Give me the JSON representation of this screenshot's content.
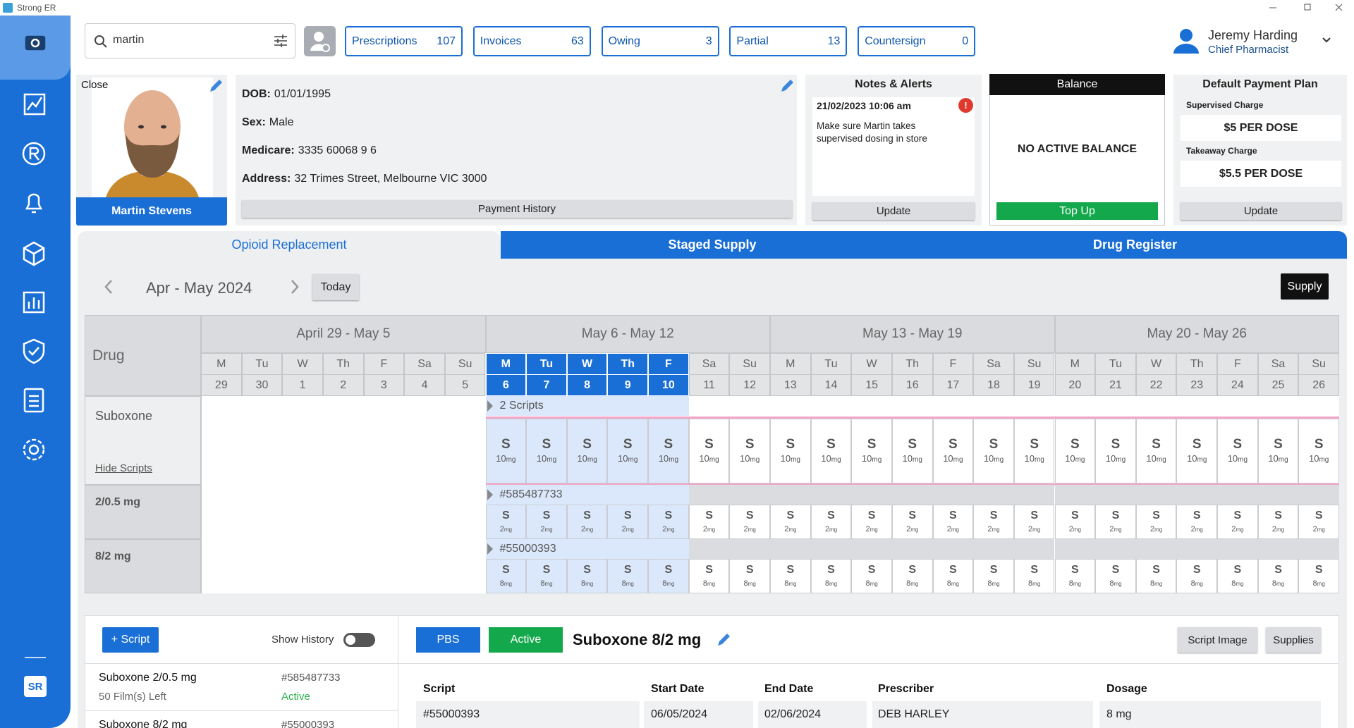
{
  "app": {
    "title": "Strong ER",
    "logo": "SR"
  },
  "search": {
    "query": "martin"
  },
  "counters": [
    {
      "label": "Prescriptions",
      "count": 107
    },
    {
      "label": "Invoices",
      "count": 63
    },
    {
      "label": "Owing",
      "count": 3
    },
    {
      "label": "Partial",
      "count": 13
    },
    {
      "label": "Countersign",
      "count": 0
    }
  ],
  "user": {
    "name": "Jeremy Harding",
    "role": "Chief Pharmacist"
  },
  "patient": {
    "close": "Close",
    "name": "Martin Stevens",
    "fields": [
      {
        "label": "DOB:",
        "value": "01/01/1995"
      },
      {
        "label": "Sex:",
        "value": "Male"
      },
      {
        "label": "Medicare:",
        "value": "3335 60068 9 6"
      },
      {
        "label": "Address:",
        "value": "32 Trimes Street, Melbourne VIC 3000"
      }
    ],
    "payment_history": "Payment History"
  },
  "notes": {
    "title": "Notes & Alerts",
    "date": "21/02/2023 10:06 am",
    "alert_icon": "!",
    "text": "Make sure Martin takes supervised dosing in store",
    "button": "Update"
  },
  "balance": {
    "title": "Balance",
    "text": "NO ACTIVE BALANCE",
    "button": "Top Up"
  },
  "payment_plan": {
    "title": "Default Payment Plan",
    "items": [
      {
        "label": "Supervised Charge",
        "value": "$5 PER DOSE"
      },
      {
        "label": "Takeaway Charge",
        "value": "$5.5 PER DOSE"
      }
    ],
    "button": "Update"
  },
  "tabs": [
    "Opioid Replacement",
    "Staged Supply",
    "Drug Register"
  ],
  "calendar": {
    "range": "Apr - May 2024",
    "today": "Today",
    "supply": "Supply",
    "drug_header": "Drug",
    "weeks": [
      {
        "label": "April 29 - May 5",
        "days": [
          {
            "dow": "M",
            "date": 29
          },
          {
            "dow": "Tu",
            "date": 30
          },
          {
            "dow": "W",
            "date": 1
          },
          {
            "dow": "Th",
            "date": 2
          },
          {
            "dow": "F",
            "date": 3
          },
          {
            "dow": "Sa",
            "date": 4
          },
          {
            "dow": "Su",
            "date": 5
          }
        ]
      },
      {
        "label": "May 6 - May 12",
        "days": [
          {
            "dow": "M",
            "date": 6,
            "selected": true
          },
          {
            "dow": "Tu",
            "date": 7,
            "selected": true
          },
          {
            "dow": "W",
            "date": 8,
            "selected": true
          },
          {
            "dow": "Th",
            "date": 9,
            "selected": true
          },
          {
            "dow": "F",
            "date": 10,
            "selected": true
          },
          {
            "dow": "Sa",
            "date": 11
          },
          {
            "dow": "Su",
            "date": 12
          }
        ]
      },
      {
        "label": "May 13 - May 19",
        "days": [
          {
            "dow": "M",
            "date": 13
          },
          {
            "dow": "Tu",
            "date": 14
          },
          {
            "dow": "W",
            "date": 15
          },
          {
            "dow": "Th",
            "date": 16
          },
          {
            "dow": "F",
            "date": 17
          },
          {
            "dow": "Sa",
            "date": 18
          },
          {
            "dow": "Su",
            "date": 19
          }
        ]
      },
      {
        "label": "May 20 - May 26",
        "days": [
          {
            "dow": "M",
            "date": 20
          },
          {
            "dow": "Tu",
            "date": 21
          },
          {
            "dow": "W",
            "date": 22
          },
          {
            "dow": "Th",
            "date": 23
          },
          {
            "dow": "F",
            "date": 24
          },
          {
            "dow": "Sa",
            "date": 25
          },
          {
            "dow": "Su",
            "date": 26
          }
        ]
      }
    ],
    "rows": [
      {
        "drug": "Suboxone",
        "toggle": "Hide Scripts",
        "header": "2 Scripts",
        "cells": [
          null,
          null,
          null,
          null,
          null,
          null,
          null,
          {
            "code": "S",
            "dose": 10,
            "unit": "mg"
          },
          {
            "code": "S",
            "dose": 10,
            "unit": "mg"
          },
          {
            "code": "S",
            "dose": 10,
            "unit": "mg"
          },
          {
            "code": "S",
            "dose": 10,
            "unit": "mg"
          },
          {
            "code": "S",
            "dose": 10,
            "unit": "mg"
          },
          {
            "code": "S",
            "dose": 10,
            "unit": "mg"
          },
          {
            "code": "S",
            "dose": 10,
            "unit": "mg"
          },
          {
            "code": "S",
            "dose": 10,
            "unit": "mg"
          },
          {
            "code": "S",
            "dose": 10,
            "unit": "mg"
          },
          {
            "code": "S",
            "dose": 10,
            "unit": "mg"
          },
          {
            "code": "S",
            "dose": 10,
            "unit": "mg"
          },
          {
            "code": "S",
            "dose": 10,
            "unit": "mg"
          },
          {
            "code": "S",
            "dose": 10,
            "unit": "mg"
          },
          {
            "code": "S",
            "dose": 10,
            "unit": "mg"
          },
          {
            "code": "S",
            "dose": 10,
            "unit": "mg"
          },
          {
            "code": "S",
            "dose": 10,
            "unit": "mg"
          },
          {
            "code": "S",
            "dose": 10,
            "unit": "mg"
          },
          {
            "code": "S",
            "dose": 10,
            "unit": "mg"
          },
          {
            "code": "S",
            "dose": 10,
            "unit": "mg"
          },
          {
            "code": "S",
            "dose": 10,
            "unit": "mg"
          },
          {
            "code": "S",
            "dose": 10,
            "unit": "mg"
          }
        ]
      },
      {
        "drug": "2/0.5 mg",
        "header": "#585487733",
        "cells": [
          null,
          null,
          null,
          null,
          null,
          null,
          null,
          {
            "code": "S",
            "dose": 2,
            "unit": "mg"
          },
          {
            "code": "S",
            "dose": 2,
            "unit": "mg"
          },
          {
            "code": "S",
            "dose": 2,
            "unit": "mg"
          },
          {
            "code": "S",
            "dose": 2,
            "unit": "mg"
          },
          {
            "code": "S",
            "dose": 2,
            "unit": "mg"
          },
          {
            "code": "S",
            "dose": 2,
            "unit": "mg"
          },
          {
            "code": "S",
            "dose": 2,
            "unit": "mg"
          },
          {
            "code": "S",
            "dose": 2,
            "unit": "mg"
          },
          {
            "code": "S",
            "dose": 2,
            "unit": "mg"
          },
          {
            "code": "S",
            "dose": 2,
            "unit": "mg"
          },
          {
            "code": "S",
            "dose": 2,
            "unit": "mg"
          },
          {
            "code": "S",
            "dose": 2,
            "unit": "mg"
          },
          {
            "code": "S",
            "dose": 2,
            "unit": "mg"
          },
          {
            "code": "S",
            "dose": 2,
            "unit": "mg"
          },
          {
            "code": "S",
            "dose": 2,
            "unit": "mg"
          },
          {
            "code": "S",
            "dose": 2,
            "unit": "mg"
          },
          {
            "code": "S",
            "dose": 2,
            "unit": "mg"
          },
          {
            "code": "S",
            "dose": 2,
            "unit": "mg"
          },
          {
            "code": "S",
            "dose": 2,
            "unit": "mg"
          },
          {
            "code": "S",
            "dose": 2,
            "unit": "mg"
          },
          {
            "code": "S",
            "dose": 2,
            "unit": "mg"
          }
        ]
      },
      {
        "drug": "8/2 mg",
        "header": "#55000393",
        "cells": [
          null,
          null,
          null,
          null,
          null,
          null,
          null,
          {
            "code": "S",
            "dose": 8,
            "unit": "mg"
          },
          {
            "code": "S",
            "dose": 8,
            "unit": "mg"
          },
          {
            "code": "S",
            "dose": 8,
            "unit": "mg"
          },
          {
            "code": "S",
            "dose": 8,
            "unit": "mg"
          },
          {
            "code": "S",
            "dose": 8,
            "unit": "mg"
          },
          {
            "code": "S",
            "dose": 8,
            "unit": "mg"
          },
          {
            "code": "S",
            "dose": 8,
            "unit": "mg"
          },
          {
            "code": "S",
            "dose": 8,
            "unit": "mg"
          },
          {
            "code": "S",
            "dose": 8,
            "unit": "mg"
          },
          {
            "code": "S",
            "dose": 8,
            "unit": "mg"
          },
          {
            "code": "S",
            "dose": 8,
            "unit": "mg"
          },
          {
            "code": "S",
            "dose": 8,
            "unit": "mg"
          },
          {
            "code": "S",
            "dose": 8,
            "unit": "mg"
          },
          {
            "code": "S",
            "dose": 8,
            "unit": "mg"
          },
          {
            "code": "S",
            "dose": 8,
            "unit": "mg"
          },
          {
            "code": "S",
            "dose": 8,
            "unit": "mg"
          },
          {
            "code": "S",
            "dose": 8,
            "unit": "mg"
          },
          {
            "code": "S",
            "dose": 8,
            "unit": "mg"
          },
          {
            "code": "S",
            "dose": 8,
            "unit": "mg"
          },
          {
            "code": "S",
            "dose": 8,
            "unit": "mg"
          },
          {
            "code": "S",
            "dose": 8,
            "unit": "mg"
          }
        ]
      }
    ]
  },
  "scripts_panel": {
    "add_button": "+ Script",
    "show_history": "Show History",
    "items": [
      {
        "name": "Suboxone 2/0.5 mg",
        "number": "#585487733",
        "remaining": "50 Film(s) Left",
        "status": "Active"
      },
      {
        "name": "Suboxone 8/2 mg",
        "number": "#55000393"
      }
    ]
  },
  "script_detail": {
    "badge": "PBS",
    "status": "Active",
    "title": "Suboxone 8/2 mg",
    "buttons": [
      "Script Image",
      "Supplies"
    ],
    "fields": [
      {
        "label": "Script",
        "value": "#55000393"
      },
      {
        "label": "Start Date",
        "value": "06/05/2024"
      },
      {
        "label": "End Date",
        "value": "02/06/2024"
      },
      {
        "label": "Prescriber",
        "value": "DEB HARLEY"
      },
      {
        "label": "Dosage",
        "value": "8 mg"
      }
    ]
  }
}
